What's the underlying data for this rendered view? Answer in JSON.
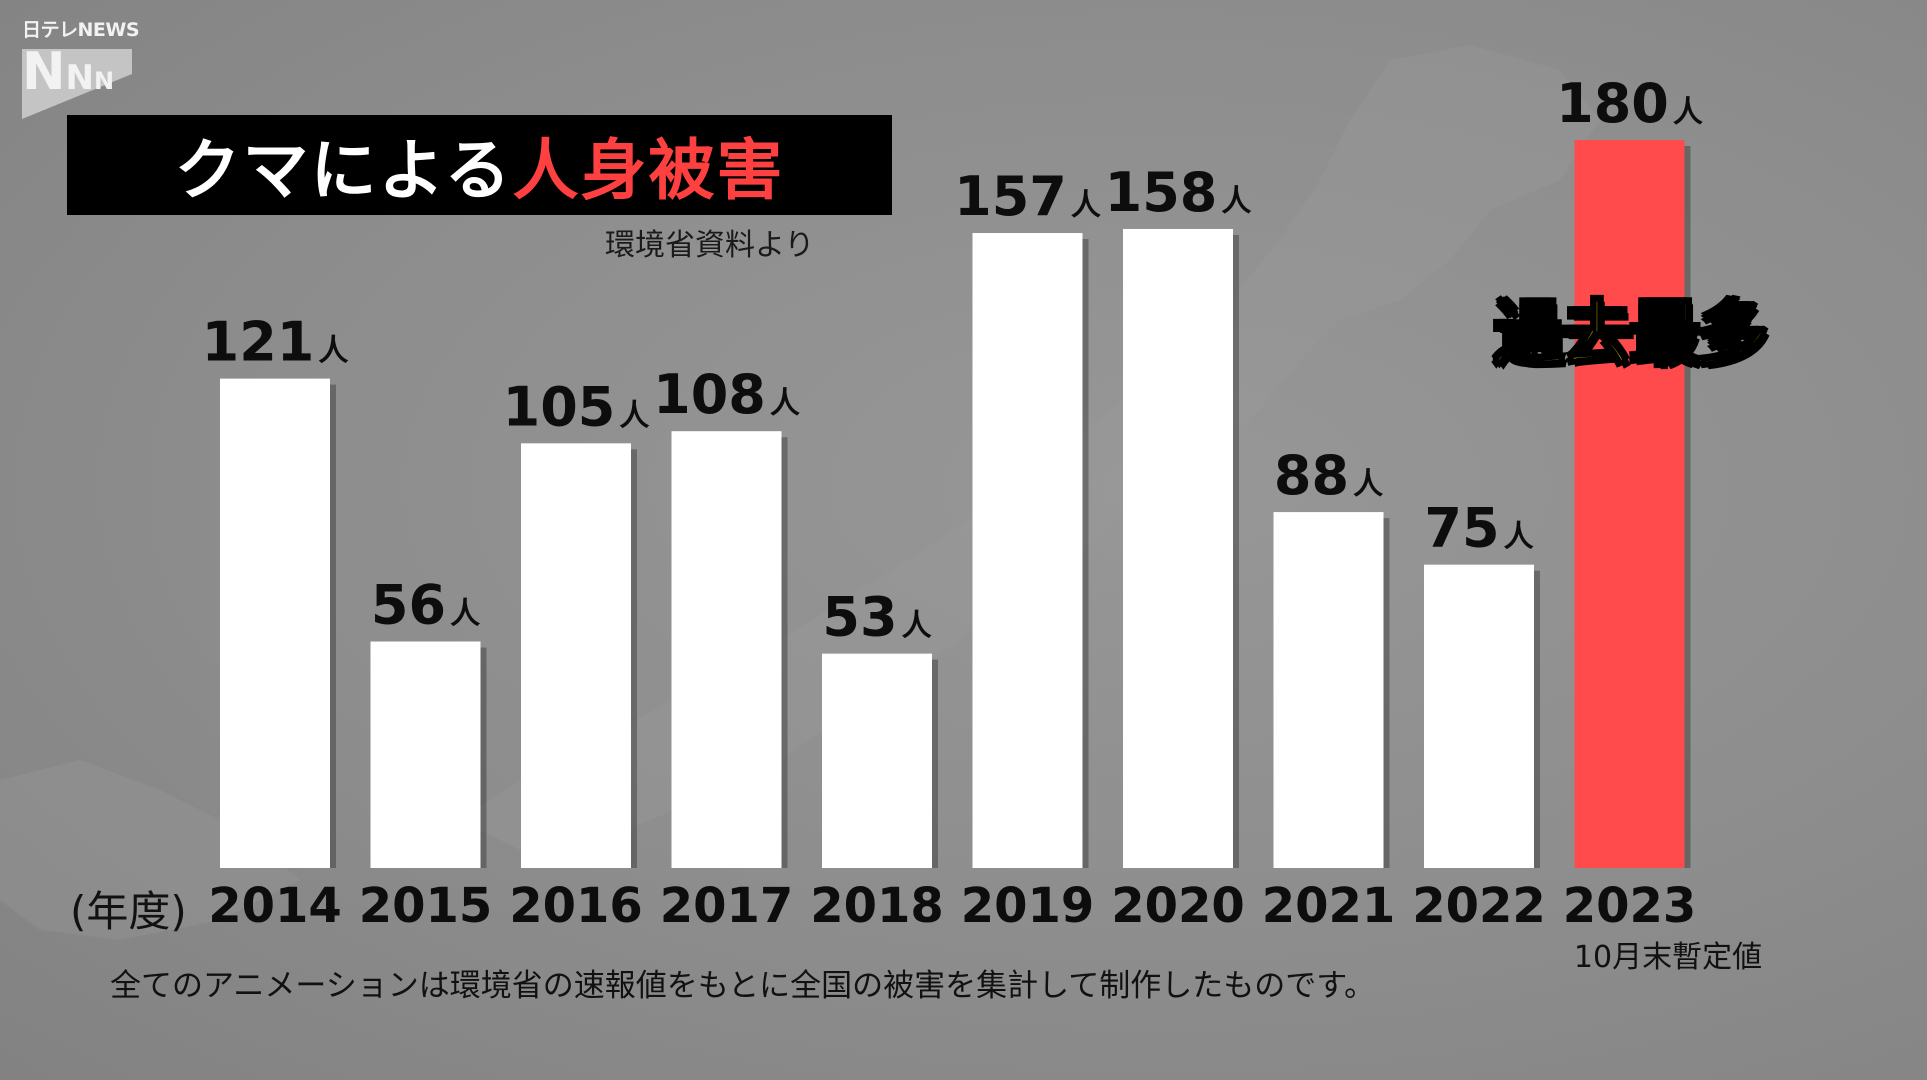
{
  "brand": {
    "channel_text": "日テレNEWS",
    "logo_letters": [
      "N",
      "N",
      "N"
    ]
  },
  "title": {
    "part_white": "クマによる",
    "part_red": "人身被害"
  },
  "source_note": "環境省資料より",
  "year_unit_label": "(年度)",
  "footnote": "全てのアニメーションは環境省の速報値をもとに全国の被害を集計して制作したものです。",
  "provisional_note": "10月末暫定値",
  "record_badge": "過去最多",
  "colors": {
    "bar": "#ffffff",
    "highlight_bar": "#ff4b4b",
    "title_red": "#ff4040",
    "badge_yellow": "#ffe600"
  },
  "chart_data": {
    "type": "bar",
    "categories": [
      "2014",
      "2015",
      "2016",
      "2017",
      "2018",
      "2019",
      "2020",
      "2021",
      "2022",
      "2023"
    ],
    "values": [
      121,
      56,
      105,
      108,
      53,
      157,
      158,
      88,
      75,
      180
    ],
    "value_labels": [
      "121",
      "56",
      "105",
      "108",
      "53",
      "157",
      "158",
      "88",
      "75",
      "180"
    ],
    "unit": "人",
    "highlight_category": "2023",
    "ylim": [
      0,
      180
    ],
    "grid": false
  }
}
